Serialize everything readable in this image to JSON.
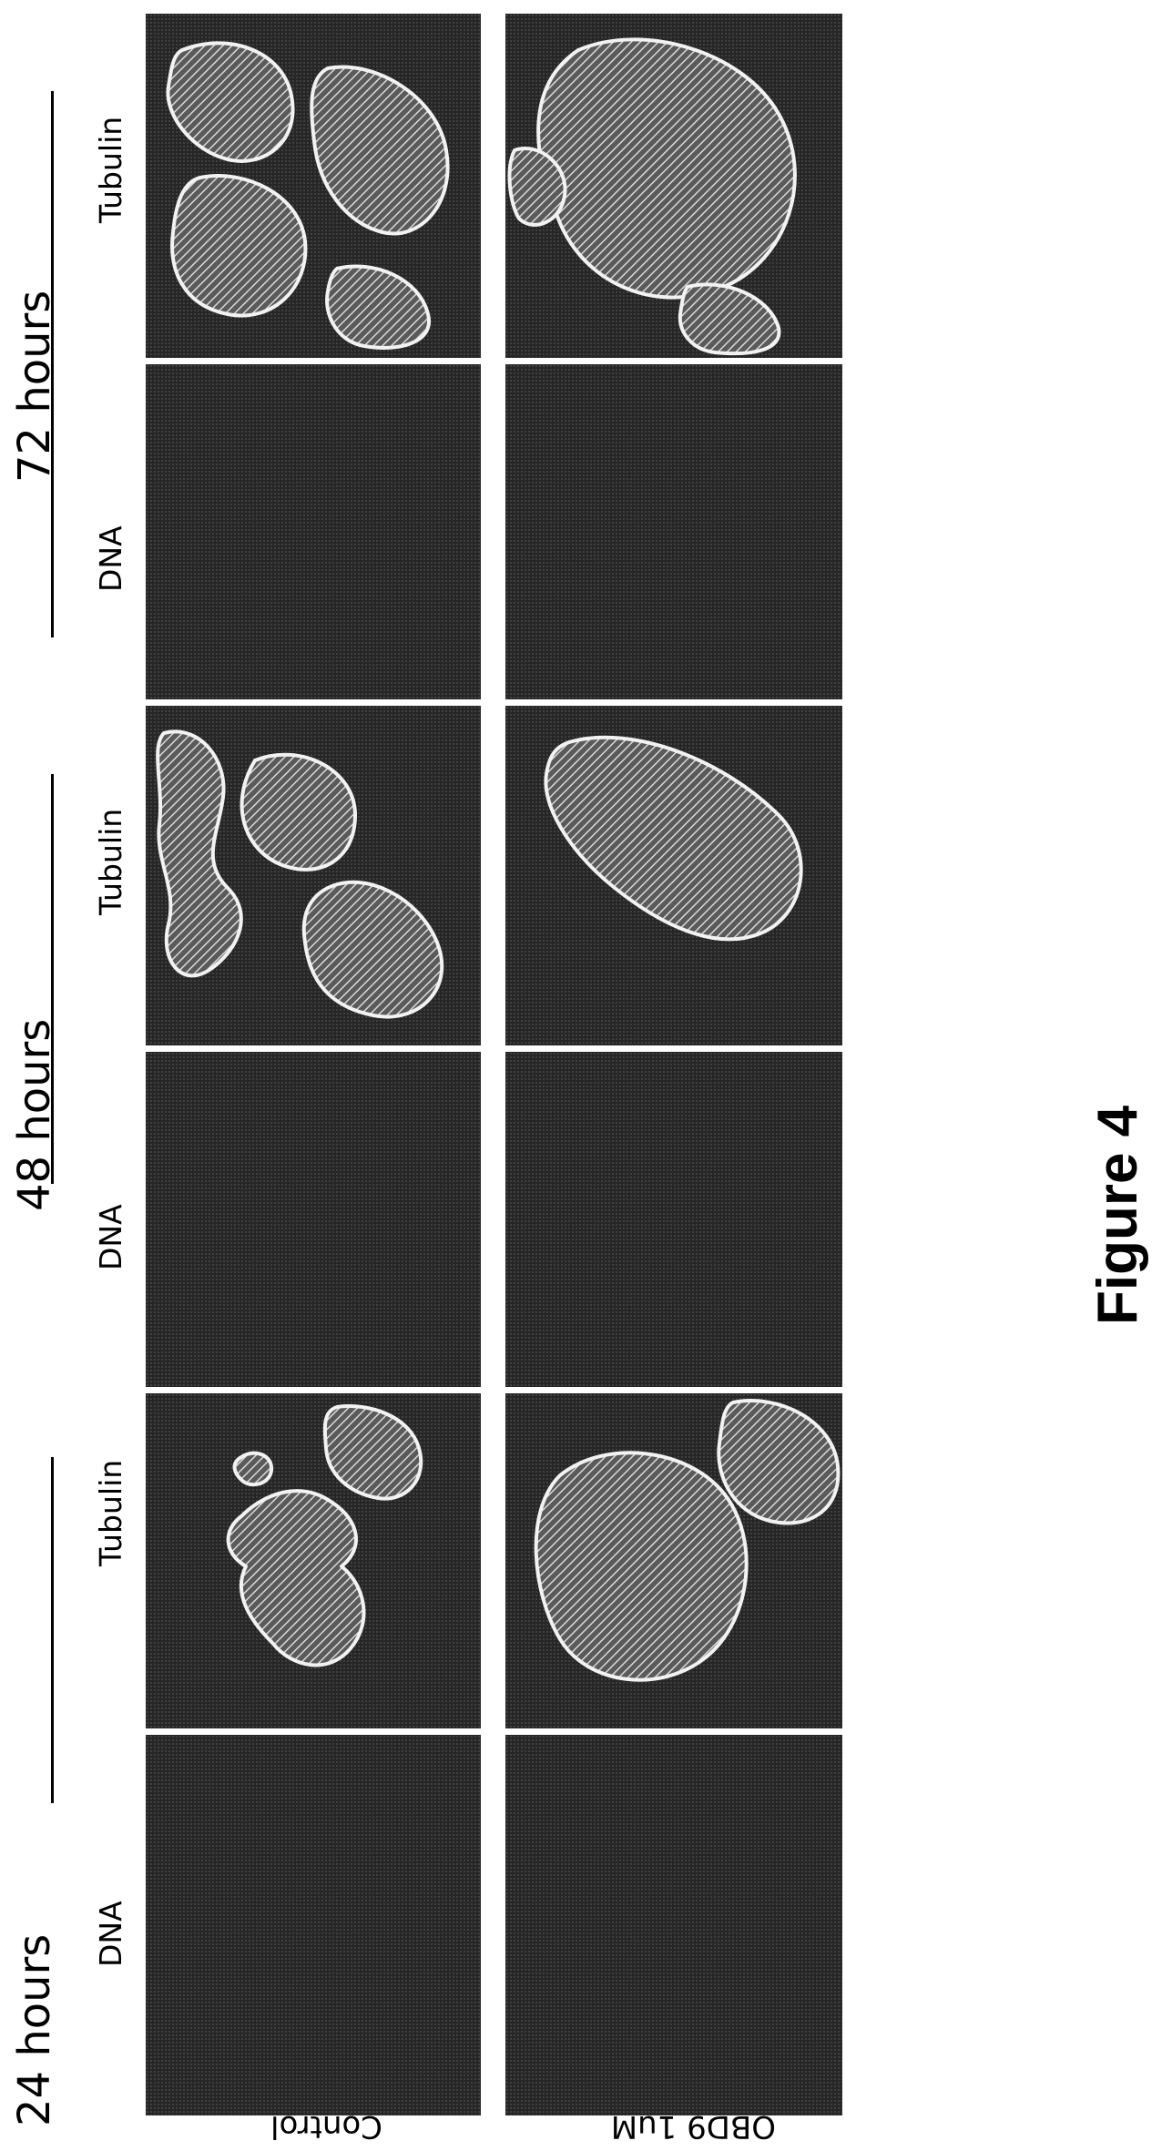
{
  "figure_label": "Figure 4",
  "timepoints": [
    "24 hours",
    "48 hours",
    "72 hours"
  ],
  "channels": [
    "DNA",
    "Tubulin"
  ],
  "rows": [
    "Control",
    "OBD9 1uM"
  ],
  "colors": {
    "panel_background": "#262626",
    "cell_outline": "#f2f2f2",
    "background": "#ffffff"
  }
}
